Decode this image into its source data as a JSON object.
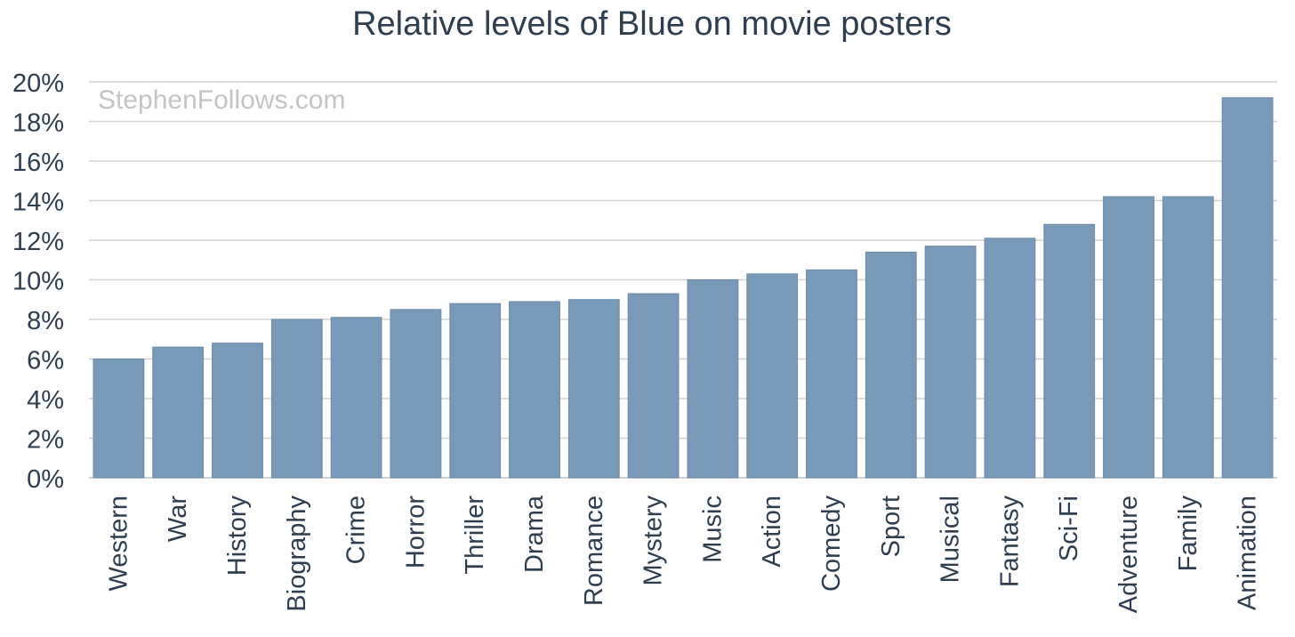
{
  "chart_data": {
    "type": "bar",
    "title": "Relative levels of Blue on movie posters",
    "watermark": "StephenFollows.com",
    "categories": [
      "Western",
      "War",
      "History",
      "Biography",
      "Crime",
      "Horror",
      "Thriller",
      "Drama",
      "Romance",
      "Mystery",
      "Music",
      "Action",
      "Comedy",
      "Sport",
      "Musical",
      "Fantasy",
      "Sci-Fi",
      "Adventure",
      "Family",
      "Animation"
    ],
    "values": [
      6.0,
      6.6,
      6.8,
      8.0,
      8.1,
      8.5,
      8.8,
      8.9,
      9.0,
      9.3,
      10.0,
      10.3,
      10.5,
      11.4,
      11.7,
      12.1,
      12.8,
      14.2,
      14.2,
      19.2
    ],
    "ylim": [
      0,
      20
    ],
    "yticks": [
      "0%",
      "2%",
      "4%",
      "6%",
      "8%",
      "10%",
      "12%",
      "14%",
      "16%",
      "18%",
      "20%"
    ],
    "xlabel": "",
    "ylabel": "",
    "grid": true,
    "legend": "none",
    "colors": {
      "bar": "#7899b7",
      "grid": "#d4d4d4",
      "text": "#2f3e4e"
    }
  }
}
